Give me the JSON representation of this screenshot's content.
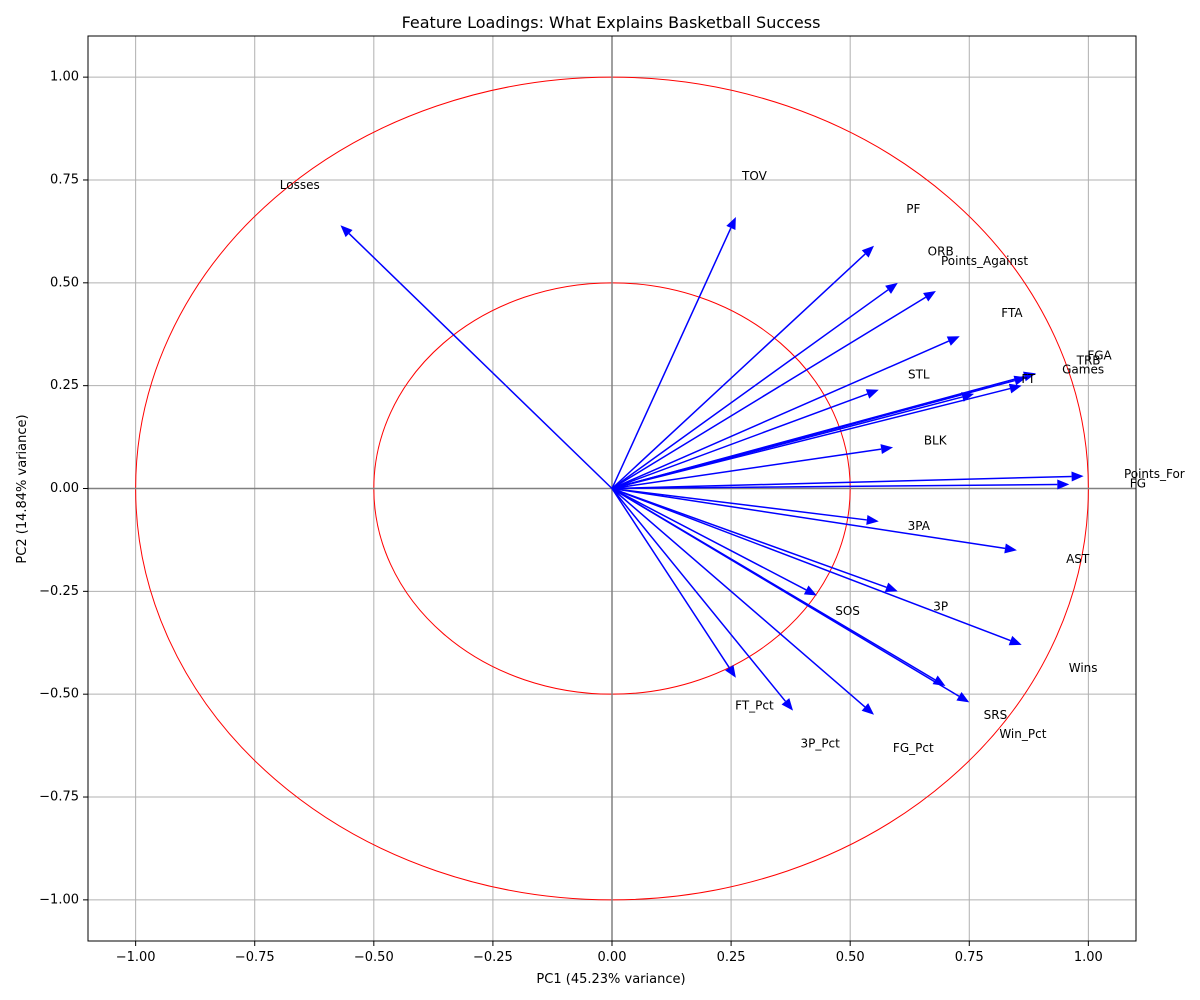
{
  "chart_data": {
    "type": "scatter",
    "title": "Feature Loadings: What Explains Basketball Success",
    "xlabel": "PC1 (45.23% variance)",
    "ylabel": "PC2 (14.84% variance)",
    "xlim": [
      -1.1,
      1.1
    ],
    "ylim": [
      -1.1,
      1.1
    ],
    "grid": true,
    "xticks": [
      -1.0,
      -0.75,
      -0.5,
      -0.25,
      0.0,
      0.25,
      0.5,
      0.75,
      1.0
    ],
    "yticks": [
      -1.0,
      -0.75,
      -0.5,
      -0.25,
      0.0,
      0.25,
      0.5,
      0.75,
      1.0
    ],
    "xtick_labels": [
      "−1.00",
      "−0.75",
      "−0.50",
      "−0.25",
      "0.00",
      "0.25",
      "0.50",
      "0.75",
      "1.00"
    ],
    "ytick_labels": [
      "−1.00",
      "−0.75",
      "−0.50",
      "−0.25",
      "0.00",
      "0.25",
      "0.50",
      "0.75",
      "1.00"
    ],
    "circles": [
      1.0,
      0.5
    ],
    "circle_color": "#ff0000",
    "vector_color": "#0000ff",
    "vectors": [
      {
        "name": "Losses",
        "x": -0.57,
        "y": 0.64
      },
      {
        "name": "TOV",
        "x": 0.26,
        "y": 0.66
      },
      {
        "name": "PF",
        "x": 0.55,
        "y": 0.59
      },
      {
        "name": "ORB",
        "x": 0.6,
        "y": 0.5
      },
      {
        "name": "Points_Against",
        "x": 0.68,
        "y": 0.48
      },
      {
        "name": "FTA",
        "x": 0.73,
        "y": 0.37
      },
      {
        "name": "FGA",
        "x": 0.89,
        "y": 0.28
      },
      {
        "name": "TRB",
        "x": 0.87,
        "y": 0.27
      },
      {
        "name": "Games",
        "x": 0.86,
        "y": 0.25
      },
      {
        "name": "FT",
        "x": 0.76,
        "y": 0.23
      },
      {
        "name": "STL",
        "x": 0.56,
        "y": 0.24
      },
      {
        "name": "BLK",
        "x": 0.59,
        "y": 0.1
      },
      {
        "name": "Points_For",
        "x": 0.99,
        "y": 0.03
      },
      {
        "name": "FG",
        "x": 0.96,
        "y": 0.01
      },
      {
        "name": "3PA",
        "x": 0.56,
        "y": -0.08
      },
      {
        "name": "AST",
        "x": 0.85,
        "y": -0.15
      },
      {
        "name": "3P",
        "x": 0.6,
        "y": -0.25
      },
      {
        "name": "SOS",
        "x": 0.43,
        "y": -0.26
      },
      {
        "name": "Wins",
        "x": 0.86,
        "y": -0.38
      },
      {
        "name": "SRS",
        "x": 0.7,
        "y": -0.48
      },
      {
        "name": "Win_Pct",
        "x": 0.75,
        "y": -0.52
      },
      {
        "name": "FT_Pct",
        "x": 0.26,
        "y": -0.46
      },
      {
        "name": "3P_Pct",
        "x": 0.38,
        "y": -0.54
      },
      {
        "name": "FG_Pct",
        "x": 0.55,
        "y": -0.55
      }
    ]
  }
}
